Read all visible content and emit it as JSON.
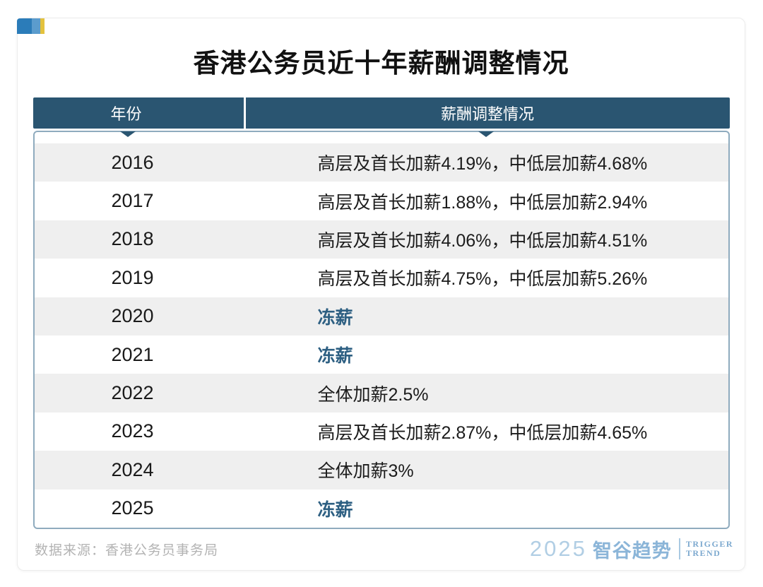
{
  "chart_data": {
    "type": "table",
    "title": "香港公务员近十年薪酬调整情况",
    "columns": [
      "年份",
      "薪酬调整情况"
    ],
    "rows": [
      {
        "year": "2016",
        "adjustment": "高层及首长加薪4.19%，中低层加薪4.68%",
        "frozen": false
      },
      {
        "year": "2017",
        "adjustment": "高层及首长加薪1.88%，中低层加薪2.94%",
        "frozen": false
      },
      {
        "year": "2018",
        "adjustment": "高层及首长加薪4.06%，中低层加薪4.51%",
        "frozen": false
      },
      {
        "year": "2019",
        "adjustment": "高层及首长加薪4.75%，中低层加薪5.26%",
        "frozen": false
      },
      {
        "year": "2020",
        "adjustment": "冻薪",
        "frozen": true
      },
      {
        "year": "2021",
        "adjustment": "冻薪",
        "frozen": true
      },
      {
        "year": "2022",
        "adjustment": "全体加薪2.5%",
        "frozen": false
      },
      {
        "year": "2023",
        "adjustment": "高层及首长加薪2.87%，中低层加薪4.65%",
        "frozen": false
      },
      {
        "year": "2024",
        "adjustment": "全体加薪3%",
        "frozen": false
      },
      {
        "year": "2025",
        "adjustment": "冻薪",
        "frozen": true
      }
    ],
    "source": "数据来源：香港公务员事务局",
    "legend_position": "none",
    "grid": false
  },
  "logo": {
    "year": "2025",
    "brand": "智谷趋势",
    "tagline_line1": "TRIGGER",
    "tagline_line2": "TREND"
  },
  "colors": {
    "header_bg": "#2a5571",
    "table_border": "#8fabbe",
    "row_alt_bg": "#efefef",
    "frozen_text": "#2d5f82",
    "deco_blue": "#2b7cb9",
    "deco_light_blue": "#5b9ccd",
    "deco_yellow": "#e3c23e",
    "logo_blue": "#8bb5d8",
    "source_text": "#b3b3b3"
  }
}
